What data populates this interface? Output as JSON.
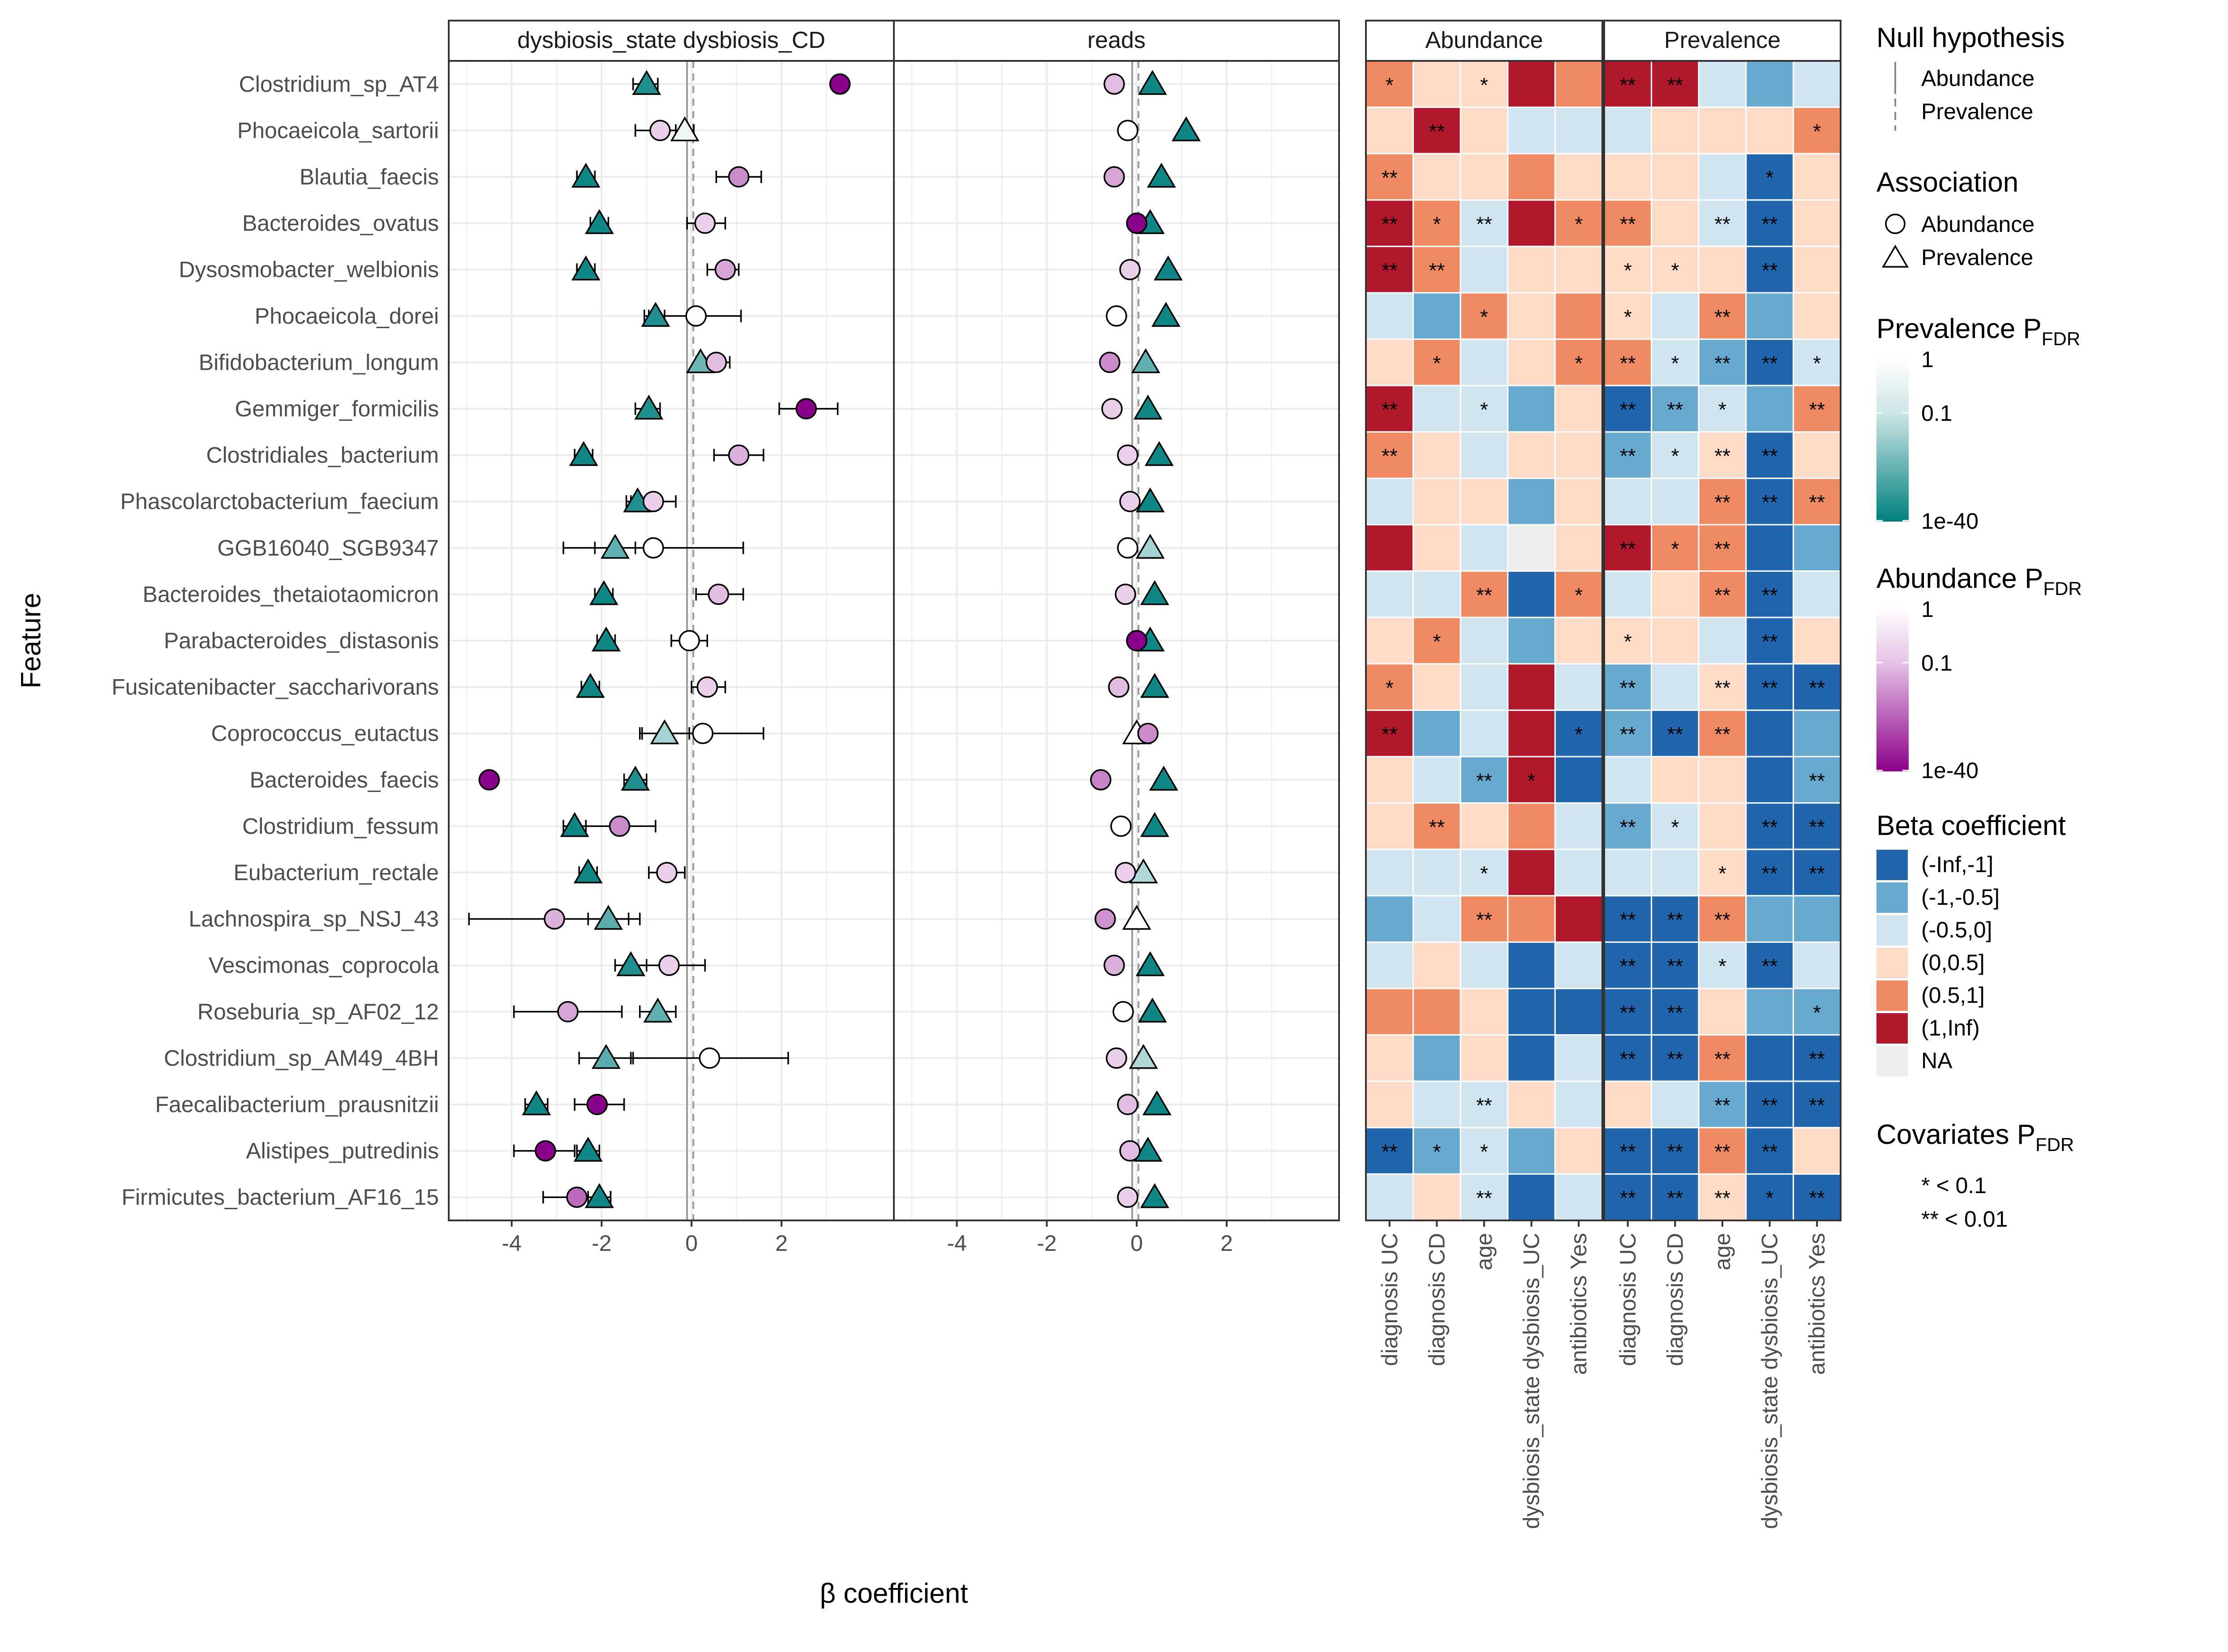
{
  "chart_data": {
    "type": "scatter",
    "ylabel": "Feature",
    "xlabel": "β coefficient",
    "forest_panels": [
      "dysbiosis_state dysbiosis_CD",
      "reads"
    ],
    "x_ticks": [
      "-4",
      "-2",
      "0",
      "2"
    ],
    "xlim": [
      -5.4,
      4.5
    ],
    "features": [
      "Clostridium_sp_AT4",
      "Phocaeicola_sartorii",
      "Blautia_faecis",
      "Bacteroides_ovatus",
      "Dysosmobacter_welbionis",
      "Phocaeicola_dorei",
      "Bifidobacterium_longum",
      "Gemmiger_formicilis",
      "Clostridiales_bacterium",
      "Phascolarctobacterium_faecium",
      "GGB16040_SGB9347",
      "Bacteroides_thetaiotaomicron",
      "Parabacteroides_distasonis",
      "Fusicatenibacter_saccharivorans",
      "Coprococcus_eutactus",
      "Bacteroides_faecis",
      "Clostridium_fessum",
      "Eubacterium_rectale",
      "Lachnospira_sp_NSJ_43",
      "Vescimonas_coprocola",
      "Roseburia_sp_AF02_12",
      "Clostridium_sp_AM49_4BH",
      "Faecalibacterium_prausnitzii",
      "Alistipes_putredinis",
      "Firmicutes_bacterium_AF16_15"
    ],
    "dysbiosis_CD": {
      "abundance_beta": [
        3.3,
        -0.7,
        1.05,
        0.3,
        0.75,
        0.1,
        0.55,
        2.55,
        1.05,
        -0.85,
        -0.85,
        0.6,
        -0.05,
        0.35,
        0.25,
        -4.5,
        -1.6,
        -0.55,
        -3.05,
        -0.5,
        -2.75,
        0.4,
        -2.1,
        -3.25,
        -2.55
      ],
      "abundance_lo": [
        2.65,
        -1.25,
        0.55,
        -0.1,
        0.35,
        -0.95,
        0.25,
        1.95,
        0.5,
        -1.35,
        -2.85,
        0.1,
        -0.45,
        0.0,
        -1.1,
        -3.4,
        -2.35,
        -0.95,
        -4.95,
        -1.25,
        -3.95,
        -1.35,
        -2.6,
        -3.95,
        -3.3
      ],
      "abundance_hi": [
        2.65,
        -0.15,
        1.55,
        0.75,
        1.05,
        1.1,
        0.85,
        3.25,
        1.6,
        -0.35,
        1.15,
        1.15,
        0.35,
        0.75,
        1.6,
        -3.4,
        -0.8,
        -0.15,
        -1.15,
        0.3,
        -1.55,
        2.15,
        -1.5,
        -2.6,
        -1.8
      ],
      "abundance_p_log10": [
        -40,
        -1,
        -7,
        -1,
        -4,
        0,
        -2,
        -40,
        -3,
        -1,
        0,
        -2,
        0,
        -1,
        0,
        -40,
        -7,
        -1,
        -3,
        -1,
        -4,
        0,
        -40,
        -40,
        -12
      ],
      "prevalence_beta": [
        -1.0,
        -0.15,
        -2.35,
        -2.05,
        -2.35,
        -0.8,
        0.2,
        -0.95,
        -2.4,
        -1.2,
        -1.7,
        -1.95,
        -1.9,
        -2.25,
        -0.6,
        -1.25,
        -2.6,
        -2.3,
        -1.85,
        -1.35,
        -0.75,
        -1.9,
        -3.45,
        -2.3,
        -2.05
      ],
      "prevalence_lo": [
        -1.3,
        -0.35,
        -2.55,
        -2.25,
        -2.55,
        -1.05,
        0.1,
        -1.25,
        -2.6,
        -1.45,
        -2.15,
        -2.15,
        -2.1,
        -2.45,
        -1.15,
        -1.5,
        -2.85,
        -2.5,
        -2.3,
        -1.7,
        -1.15,
        -2.5,
        -3.7,
        -2.55,
        -2.3
      ],
      "prevalence_hi": [
        -0.75,
        0.05,
        -2.15,
        -1.85,
        -2.15,
        -0.6,
        0.3,
        -0.7,
        -2.2,
        -0.95,
        -1.25,
        -1.75,
        -1.7,
        -2.05,
        -0.05,
        -1.0,
        -2.35,
        -2.1,
        -1.4,
        -1.0,
        -0.35,
        -1.3,
        -3.2,
        -2.05,
        -1.8
      ],
      "prevalence_p_log10": [
        -30,
        -0.1,
        -35,
        -35,
        -35,
        -30,
        -12,
        -30,
        -35,
        -30,
        -14,
        -35,
        -35,
        -35,
        -4,
        -30,
        -35,
        -35,
        -15,
        -30,
        -14,
        -15,
        -35,
        -35,
        -35
      ]
    },
    "reads": {
      "abundance_beta": [
        -0.5,
        -0.2,
        -0.5,
        0.0,
        -0.15,
        -0.45,
        -0.6,
        -0.55,
        -0.2,
        -0.15,
        -0.2,
        -0.25,
        0.0,
        -0.4,
        0.25,
        -0.8,
        -0.35,
        -0.25,
        -0.7,
        -0.5,
        -0.3,
        -0.45,
        -0.2,
        -0.15,
        -0.2
      ],
      "abundance_lo": [
        -0.5,
        -0.2,
        -0.5,
        0.0,
        -0.15,
        -0.45,
        -0.6,
        -0.55,
        -0.2,
        -0.15,
        -0.35,
        -0.25,
        0.0,
        -0.4,
        0.25,
        -0.8,
        -0.35,
        -0.25,
        -0.7,
        -0.5,
        -0.3,
        -0.45,
        -0.2,
        -0.15,
        -0.2
      ],
      "abundance_hi": [
        -0.5,
        -0.2,
        -0.5,
        0.0,
        -0.15,
        -0.45,
        -0.6,
        -0.55,
        -0.2,
        -0.15,
        -0.05,
        -0.25,
        0.0,
        -0.4,
        0.25,
        -0.8,
        -0.35,
        -0.25,
        -0.7,
        -0.5,
        -0.3,
        -0.45,
        -0.2,
        -0.15,
        -0.2
      ],
      "abundance_p_log10": [
        -2,
        0,
        -4,
        -40,
        -1,
        0,
        -7,
        -1,
        -1,
        -1,
        0,
        -1,
        -40,
        -2,
        -7,
        -8,
        0,
        -1,
        -6,
        -3,
        0,
        -1,
        -2,
        -2,
        -1
      ],
      "prevalence_beta": [
        0.35,
        1.1,
        0.55,
        0.3,
        0.7,
        0.65,
        0.2,
        0.25,
        0.5,
        0.3,
        0.3,
        0.4,
        0.3,
        0.4,
        0.0,
        0.6,
        0.4,
        0.15,
        0.0,
        0.3,
        0.35,
        0.15,
        0.45,
        0.25,
        0.4
      ],
      "prevalence_p_log10": [
        -35,
        -35,
        -35,
        -35,
        -35,
        -35,
        -14,
        -35,
        -35,
        -35,
        -4,
        -35,
        -35,
        -35,
        0,
        -35,
        -35,
        -3,
        0,
        -35,
        -35,
        -3,
        -35,
        -35,
        -35
      ]
    },
    "heatmap": {
      "groups": [
        "Abundance",
        "Prevalence"
      ],
      "covariates": [
        "diagnosis UC",
        "diagnosis CD",
        "age",
        "dysbiosis_state dysbiosis_UC",
        "antibiotics Yes"
      ],
      "abundance_bins": [
        [
          4,
          3,
          3,
          5,
          4
        ],
        [
          3,
          5,
          3,
          2,
          2
        ],
        [
          4,
          3,
          3,
          4,
          3
        ],
        [
          5,
          4,
          2,
          5,
          4
        ],
        [
          5,
          4,
          2,
          3,
          3
        ],
        [
          2,
          1,
          4,
          3,
          4
        ],
        [
          3,
          4,
          2,
          3,
          4
        ],
        [
          5,
          2,
          2,
          1,
          3
        ],
        [
          4,
          3,
          2,
          3,
          3
        ],
        [
          2,
          3,
          3,
          1,
          3
        ],
        [
          5,
          3,
          2,
          6,
          3
        ],
        [
          2,
          2,
          4,
          0,
          4
        ],
        [
          3,
          4,
          2,
          1,
          3
        ],
        [
          4,
          3,
          2,
          5,
          2
        ],
        [
          5,
          1,
          2,
          5,
          0
        ],
        [
          3,
          2,
          1,
          5,
          0
        ],
        [
          3,
          4,
          3,
          4,
          2
        ],
        [
          2,
          2,
          2,
          5,
          2
        ],
        [
          1,
          2,
          4,
          4,
          5
        ],
        [
          2,
          3,
          2,
          0,
          2
        ],
        [
          4,
          4,
          3,
          0,
          0
        ],
        [
          3,
          1,
          3,
          0,
          2
        ],
        [
          3,
          2,
          2,
          3,
          2
        ],
        [
          0,
          1,
          2,
          1,
          3
        ],
        [
          2,
          3,
          2,
          0,
          2
        ]
      ],
      "prevalence_bins": [
        [
          5,
          5,
          2,
          1,
          2
        ],
        [
          2,
          3,
          3,
          3,
          4
        ],
        [
          3,
          3,
          2,
          0,
          3
        ],
        [
          4,
          3,
          2,
          0,
          3
        ],
        [
          3,
          3,
          3,
          0,
          3
        ],
        [
          3,
          2,
          4,
          1,
          3
        ],
        [
          4,
          2,
          1,
          0,
          2
        ],
        [
          0,
          1,
          2,
          1,
          4
        ],
        [
          1,
          2,
          3,
          0,
          3
        ],
        [
          2,
          2,
          4,
          0,
          4
        ],
        [
          5,
          4,
          4,
          0,
          1
        ],
        [
          2,
          3,
          4,
          0,
          2
        ],
        [
          3,
          3,
          2,
          0,
          3
        ],
        [
          1,
          2,
          3,
          0,
          0
        ],
        [
          1,
          0,
          4,
          0,
          1
        ],
        [
          2,
          3,
          3,
          0,
          1
        ],
        [
          1,
          2,
          3,
          0,
          0
        ],
        [
          2,
          2,
          3,
          0,
          0
        ],
        [
          0,
          0,
          4,
          1,
          1
        ],
        [
          0,
          0,
          2,
          0,
          2
        ],
        [
          0,
          0,
          3,
          1,
          1
        ],
        [
          0,
          0,
          4,
          0,
          0
        ],
        [
          3,
          2,
          1,
          0,
          0
        ],
        [
          0,
          0,
          4,
          0,
          3
        ],
        [
          0,
          0,
          3,
          0,
          0
        ]
      ],
      "abundance_stars": [
        [
          "*",
          "",
          "*",
          "",
          ""
        ],
        [
          "",
          "**",
          "",
          "",
          ""
        ],
        [
          "**",
          "",
          "",
          "",
          ""
        ],
        [
          "**",
          "*",
          "**",
          "",
          "*"
        ],
        [
          "**",
          "**",
          "",
          "",
          ""
        ],
        [
          "",
          "",
          "*",
          "",
          ""
        ],
        [
          "",
          "*",
          "",
          "",
          "*"
        ],
        [
          "**",
          "",
          "*",
          "",
          ""
        ],
        [
          "**",
          "",
          "",
          "",
          ""
        ],
        [
          "",
          "",
          "",
          "",
          ""
        ],
        [
          "",
          "",
          "",
          "",
          ""
        ],
        [
          "",
          "",
          "**",
          "",
          "*"
        ],
        [
          "",
          "*",
          "",
          "",
          ""
        ],
        [
          "*",
          "",
          "",
          "",
          ""
        ],
        [
          "**",
          "",
          "",
          "",
          "*"
        ],
        [
          "",
          "",
          "**",
          "*",
          ""
        ],
        [
          "",
          "**",
          "",
          "",
          ""
        ],
        [
          "",
          "",
          "*",
          "",
          ""
        ],
        [
          "",
          "",
          "**",
          "",
          ""
        ],
        [
          "",
          "",
          "",
          "",
          ""
        ],
        [
          "",
          "",
          "",
          "",
          ""
        ],
        [
          "",
          "",
          "",
          "",
          ""
        ],
        [
          "",
          "",
          "**",
          "",
          ""
        ],
        [
          "**",
          "*",
          "*",
          "",
          ""
        ],
        [
          "",
          "",
          "**",
          "",
          ""
        ]
      ],
      "prevalence_stars": [
        [
          "**",
          "**",
          "",
          "",
          ""
        ],
        [
          "",
          "",
          "",
          "",
          "*"
        ],
        [
          "",
          "",
          "",
          "*",
          ""
        ],
        [
          "**",
          "",
          "**",
          "**",
          ""
        ],
        [
          "*",
          "*",
          "",
          "**",
          ""
        ],
        [
          "*",
          "",
          "**",
          "",
          ""
        ],
        [
          "**",
          "*",
          "**",
          "**",
          "*"
        ],
        [
          "**",
          "**",
          "*",
          "",
          "**"
        ],
        [
          "**",
          "*",
          "**",
          "**",
          ""
        ],
        [
          "",
          "",
          "**",
          "**",
          "**"
        ],
        [
          "**",
          "*",
          "**",
          "",
          ""
        ],
        [
          "",
          "",
          "**",
          "**",
          ""
        ],
        [
          "*",
          "",
          "",
          "**",
          ""
        ],
        [
          "**",
          "",
          "**",
          "**",
          "**"
        ],
        [
          "**",
          "**",
          "**",
          "",
          ""
        ],
        [
          "",
          "",
          "",
          "",
          "**"
        ],
        [
          "**",
          "*",
          "",
          "**",
          "**"
        ],
        [
          "",
          "",
          "*",
          "**",
          "**"
        ],
        [
          "**",
          "**",
          "**",
          "",
          ""
        ],
        [
          "**",
          "**",
          "*",
          "**",
          ""
        ],
        [
          "**",
          "**",
          "",
          "",
          "*"
        ],
        [
          "**",
          "**",
          "**",
          "",
          "**"
        ],
        [
          "",
          "",
          "**",
          "**",
          "**"
        ],
        [
          "**",
          "**",
          "**",
          "**",
          ""
        ],
        [
          "**",
          "**",
          "**",
          "*",
          "**"
        ]
      ]
    },
    "legend": {
      "null_title": "Null hypothesis",
      "null_items": [
        "Abundance",
        "Prevalence"
      ],
      "assoc_title": "Association",
      "assoc_items": [
        "Abundance",
        "Prevalence"
      ],
      "prev_p_title": "Prevalence P",
      "prev_p_sub": "FDR",
      "prev_p_labels": [
        "1",
        "0.1",
        "1e-40"
      ],
      "abund_p_title": "Abundance P",
      "abund_p_sub": "FDR",
      "abund_p_labels": [
        "1",
        "0.1",
        "1e-40"
      ],
      "beta_title": "Beta coefficient",
      "beta_bins": [
        "(-Inf,-1]",
        "(-1,-0.5]",
        "(-0.5,0]",
        "(0,0.5]",
        "(0.5,1]",
        "(1,Inf)",
        "NA"
      ],
      "cov_title": "Covariates P",
      "cov_sub": "FDR",
      "cov_items": [
        "* < 0.1",
        "** < 0.01"
      ]
    },
    "colors": {
      "beta_bins": [
        "#2166ac",
        "#67a9cf",
        "#d1e5f0",
        "#fddbc7",
        "#ef8a62",
        "#b2182b",
        "#ededed"
      ],
      "prevalence_gradient": [
        "#ffffff",
        "#008080"
      ],
      "abundance_gradient": [
        "#ffffff",
        "#8b008b"
      ],
      "grid": "#ebebeb",
      "frame": "#333333"
    }
  }
}
